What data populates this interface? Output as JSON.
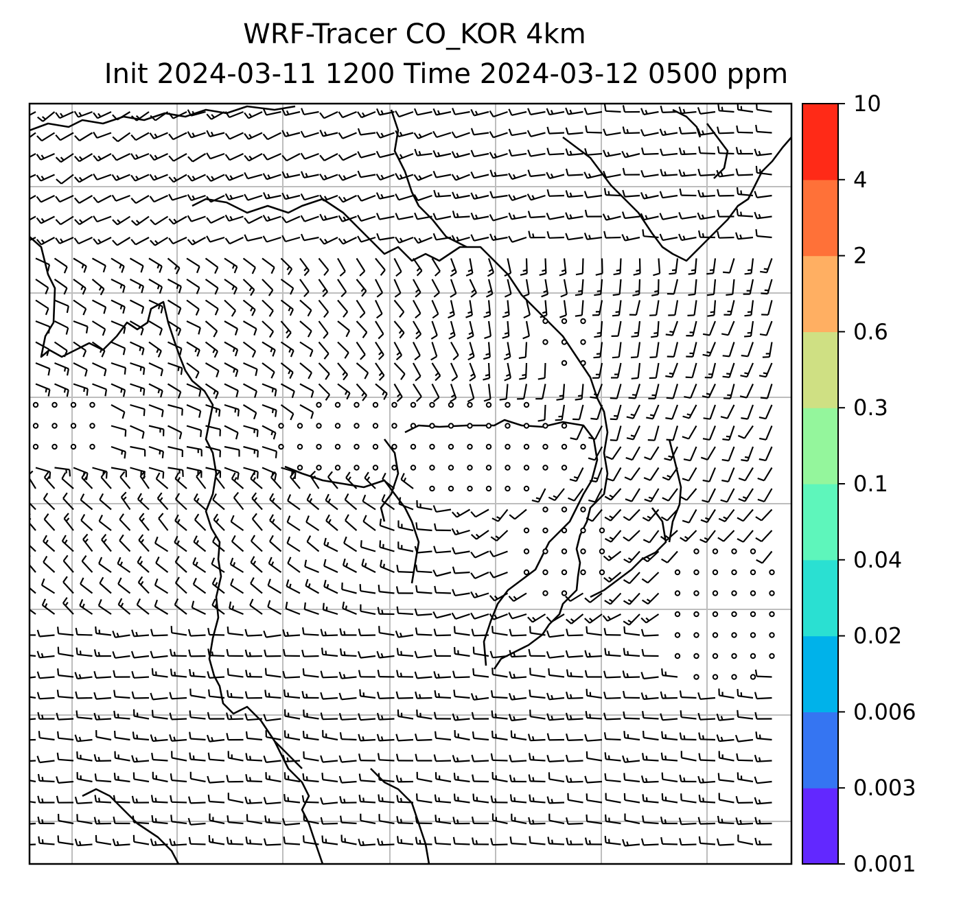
{
  "title": {
    "line1": "WRF-Tracer CO_KOR 4km",
    "line2": "Init 2024-03-11 1200 Time 2024-03-12 0500 ppm"
  },
  "colorbar": {
    "levels": [
      "0.001",
      "0.003",
      "0.006",
      "0.02",
      "0.04",
      "0.1",
      "0.3",
      "0.6",
      "2",
      "4",
      "10"
    ],
    "colors": [
      "#6228ff",
      "#3575f2",
      "#00b2ea",
      "#2ae0d2",
      "#5ef6bb",
      "#94f69c",
      "#cfe083",
      "#ffaf62",
      "#ff7138",
      "#ff2a17"
    ]
  },
  "map": {
    "symbols": "wind-barbs",
    "calm_marker": "circle",
    "gridlines": true,
    "coastline_color": "#000000",
    "grid_color": "#bdbdbd"
  }
}
